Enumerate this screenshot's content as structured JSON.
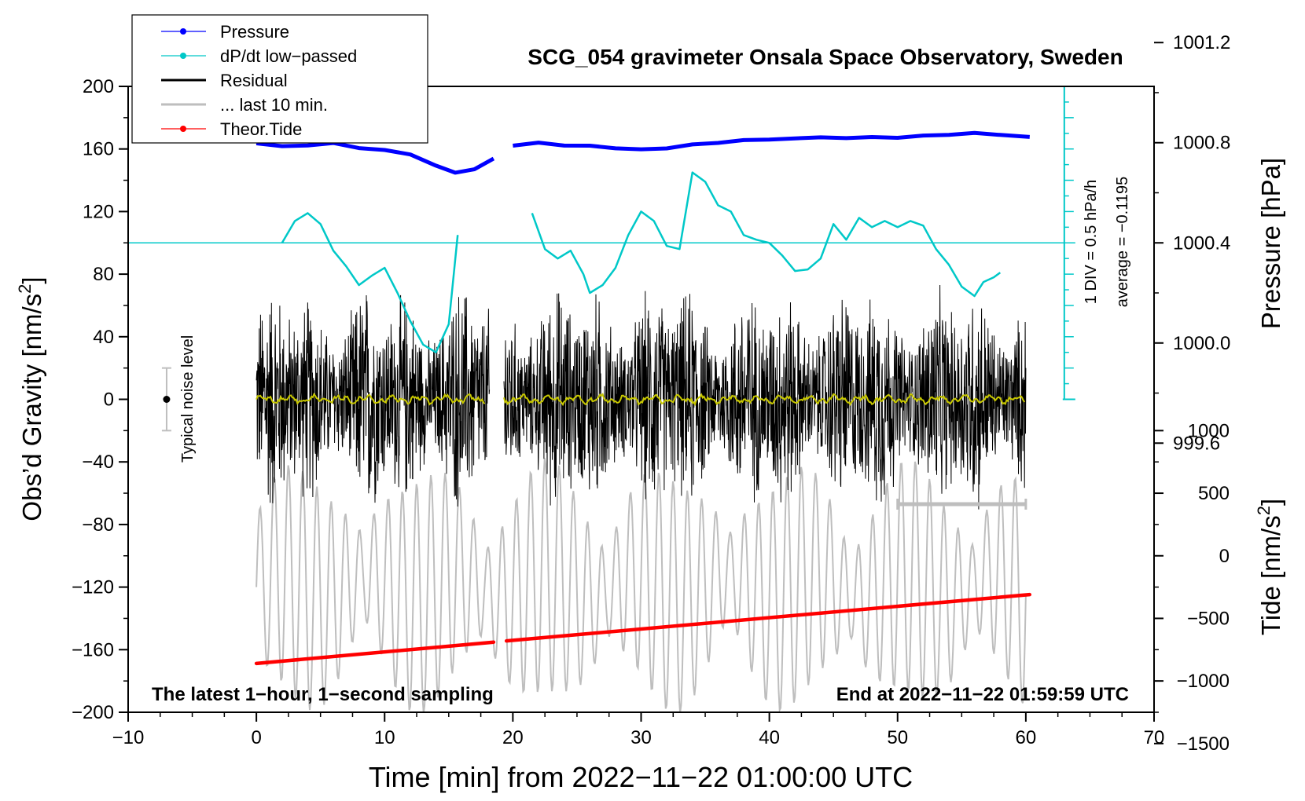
{
  "chart_data": {
    "type": "line",
    "title": "SCG_054 gravimeter Onsala Space Observatory, Sweden",
    "xlabel": "Time [min] from 2022−11−22 01:00:00 UTC",
    "ylabel_main": "Obs’d Gravity [nm/s",
    "ylabel_main_sup": "2",
    "ylabel_main_end": "]",
    "ylabel_pressure": "Pressure [hPa]",
    "ylabel_tide": "Tide [nm/s",
    "ylabel_tide_sup": "2",
    "ylabel_tide_end": "]",
    "xlim": [
      -10,
      70
    ],
    "ylim": [
      -200,
      200
    ],
    "x_ticks": [
      {
        "v": -10,
        "label": "−10"
      },
      {
        "v": 0,
        "label": "0"
      },
      {
        "v": 10,
        "label": "10"
      },
      {
        "v": 20,
        "label": "20"
      },
      {
        "v": 30,
        "label": "30"
      },
      {
        "v": 40,
        "label": "40"
      },
      {
        "v": 50,
        "label": "50"
      },
      {
        "v": 60,
        "label": "60"
      },
      {
        "v": 70,
        "label": "70"
      }
    ],
    "y_ticks": [
      {
        "v": 200,
        "label": "200"
      },
      {
        "v": 160,
        "label": "160"
      },
      {
        "v": 120,
        "label": "120"
      },
      {
        "v": 80,
        "label": "80"
      },
      {
        "v": 40,
        "label": "40"
      },
      {
        "v": 0,
        "label": "0"
      },
      {
        "v": -40,
        "label": "−40"
      },
      {
        "v": -80,
        "label": "−80"
      },
      {
        "v": -120,
        "label": "−120"
      },
      {
        "v": -160,
        "label": "−160"
      },
      {
        "v": -200,
        "label": "−200"
      }
    ],
    "pressure_axis": {
      "ticks": [
        {
          "v": 1001.2,
          "label": "1001.2"
        },
        {
          "v": 1000.8,
          "label": "1000.8"
        },
        {
          "v": 1000.4,
          "label": "1000.4"
        },
        {
          "v": 1000.0,
          "label": "1000.0"
        },
        {
          "v": 999.6,
          "label": "999.6"
        }
      ],
      "ref_value": 1000.4,
      "ref_gravity": 100,
      "gravity_per_hpa": 160
    },
    "tide_axis": {
      "ticks": [
        {
          "v": 1000,
          "label": "1000"
        },
        {
          "v": 500,
          "label": "500"
        },
        {
          "v": 0,
          "label": "0"
        },
        {
          "v": -500,
          "label": "−500"
        },
        {
          "v": -1000,
          "label": "−1000"
        },
        {
          "v": -1500,
          "label": "−1500"
        }
      ],
      "ref_value": 0,
      "ref_gravity": -100,
      "gravity_per_unit": 0.08
    },
    "legend": [
      {
        "label": "Pressure",
        "color": "#0000ff",
        "marker": true
      },
      {
        "label": "dP/dt low−passed",
        "color": "#00c8c8",
        "marker": true
      },
      {
        "label": "Residual",
        "color": "#000000",
        "marker": false
      },
      {
        "label": "... last 10 min.",
        "color": "#bebebe",
        "marker": false
      },
      {
        "label": "Theor.Tide",
        "color": "#ff0000",
        "marker": true
      }
    ],
    "legend_placement": "top-left",
    "annotations": {
      "bottom_left": "The latest 1−hour, 1−second sampling",
      "bottom_right": "End at 2022−11−22 01:59:59 UTC",
      "noise": "Typical noise level",
      "dpdt_scale": "1 DIV = 0.5 hPa/h",
      "dpdt_average": "average = −0.1195"
    },
    "noise_bar": {
      "x": -7,
      "center": 0,
      "half_range": 20
    },
    "last10_bar": {
      "x_start": 50,
      "x_end": 60,
      "y": -67
    },
    "dpdt_axis": {
      "x": 63,
      "y_top": 200,
      "y_bottom": 0,
      "baseline_y": 100,
      "divisions": 20
    },
    "series": [
      {
        "name": "Pressure",
        "color": "#0000ff",
        "units": "hPa",
        "x": [
          0,
          2,
          4,
          6,
          8,
          10,
          12,
          14,
          15.5,
          17,
          18.5,
          20,
          22,
          24,
          26,
          28,
          30,
          32,
          34,
          36,
          38,
          40,
          42,
          44,
          46,
          48,
          50,
          52,
          54,
          56,
          58,
          60.3
        ],
        "values": [
          1000.8,
          1000.79,
          1000.79,
          1000.8,
          1000.78,
          1000.77,
          1000.75,
          1000.71,
          1000.68,
          1000.69,
          1000.74,
          1000.79,
          1000.8,
          1000.79,
          1000.79,
          1000.78,
          1000.77,
          1000.78,
          1000.79,
          1000.8,
          1000.81,
          1000.81,
          1000.82,
          1000.82,
          1000.82,
          1000.82,
          1000.82,
          1000.83,
          1000.83,
          1000.84,
          1000.83,
          1000.82
        ],
        "segments": [
          [
            0,
            18.5
          ],
          [
            19.2,
            60.3
          ]
        ]
      },
      {
        "name": "dP/dt low−passed",
        "color": "#00c8c8",
        "units": "gravity-axis",
        "x": [
          2,
          3,
          4,
          5,
          6,
          7,
          8,
          9,
          10,
          11,
          12,
          13,
          14,
          15,
          15.7,
          null,
          21.5,
          22.5,
          23.5,
          24.5,
          25.5,
          26,
          27,
          28,
          29,
          30,
          31,
          32,
          33,
          34,
          35,
          36,
          37,
          38,
          39,
          40,
          41,
          42,
          43,
          44,
          45,
          46,
          47,
          48,
          49,
          50,
          51,
          52,
          53,
          54,
          55,
          56,
          56.7,
          57.5,
          58
        ],
        "values": [
          100,
          114,
          119,
          112,
          95,
          85,
          73,
          79,
          84,
          68,
          50,
          35,
          30,
          48,
          105,
          null,
          119,
          96,
          90,
          95,
          80,
          68,
          73,
          84,
          105,
          120,
          114,
          98,
          96,
          145,
          139,
          124,
          120,
          105,
          102,
          100,
          92,
          82,
          83,
          90,
          112,
          102,
          116,
          110,
          114,
          110,
          114,
          111,
          96,
          86,
          72,
          66,
          75,
          78,
          81
        ]
      },
      {
        "name": "Residual",
        "color": "#000000",
        "units": "nm/s2",
        "amplitude": 90,
        "segments": [
          [
            0,
            18.2
          ],
          [
            19.3,
            60
          ]
        ]
      },
      {
        "name": "Residual smoothed",
        "color": "#c8c800",
        "units": "nm/s2",
        "segments": [
          [
            0,
            17.8
          ],
          [
            19.3,
            60
          ]
        ]
      },
      {
        "name": "... last 10 min.",
        "color": "#bebebe",
        "units": "nm/s2",
        "amplitude": 75,
        "center": -120,
        "x_range": [
          0,
          60
        ]
      },
      {
        "name": "Theor.Tide",
        "color": "#ff0000",
        "units": "nm/s2",
        "x": [
          0,
          18.5,
          19.5,
          60.3
        ],
        "values": [
          -860,
          -690,
          -680,
          -310
        ],
        "segments": [
          [
            0,
            18.5
          ],
          [
            19.5,
            60.3
          ]
        ]
      }
    ]
  }
}
